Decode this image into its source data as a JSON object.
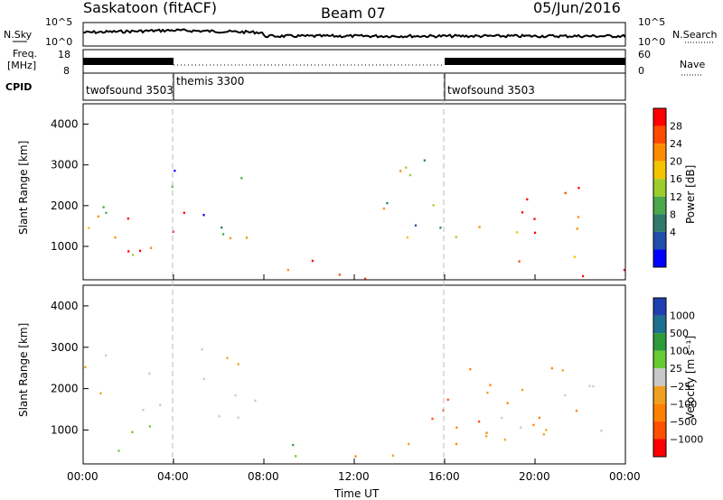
{
  "header": {
    "station": "Saskatoon (fitACF)",
    "beam": "Beam 07",
    "date": "05/Jun/2016"
  },
  "status_panel": {
    "nsky_label": "N.Sky",
    "nsearch_label": "N.Search",
    "freq_label_line1": "Freq.",
    "freq_label_line2": "[MHz]",
    "nave_label": "Nave",
    "cpid_label": "CPID",
    "left_ticks_noise": [
      "10^5",
      "10^0"
    ],
    "right_ticks_noise": [
      "10^5",
      "10^0"
    ],
    "left_ticks_freq": [
      "18",
      "8"
    ],
    "right_ticks_nave": [
      "60",
      "0"
    ],
    "cpid_segments": [
      {
        "start_hour": 0,
        "end_hour": 4,
        "label": "twofsound 3503"
      },
      {
        "start_hour": 4,
        "end_hour": 16,
        "label": "themis 3300"
      },
      {
        "start_hour": 16,
        "end_hour": 24,
        "label": "twofsound 3503"
      }
    ]
  },
  "x_axis": {
    "title": "Time UT",
    "ticks": [
      "00:00",
      "04:00",
      "08:00",
      "12:00",
      "16:00",
      "20:00",
      "00:00"
    ]
  },
  "power_colorbar": {
    "title": "Power [dB]",
    "labels": [
      "28",
      "24",
      "20",
      "16",
      "12",
      "8",
      "4"
    ],
    "colors": [
      "#ff0000",
      "#ff4a00",
      "#ff8c00",
      "#f5c400",
      "#9ccd2c",
      "#4aa84a",
      "#2f7a6a",
      "#1f4fa8",
      "#0000ff"
    ]
  },
  "velocity_colorbar": {
    "title": "Velocity [m s⁻¹]",
    "labels": [
      "1000",
      "500",
      "100",
      "25",
      "−25",
      "−100",
      "−500",
      "−1000"
    ],
    "colors": [
      "#1f3fb0",
      "#1e7090",
      "#2d9a3c",
      "#66cc33",
      "#c8c8c8",
      "#f0a020",
      "#ff8000",
      "#ff5000",
      "#ff0000"
    ]
  },
  "chart_data": [
    {
      "type": "heatmap",
      "title": "Power",
      "ylabel": "Slant Range [km]",
      "xlabel": "Time UT",
      "x_range_hours": [
        0,
        24
      ],
      "ylim": [
        180,
        4500
      ],
      "y_ticks": [
        "1000",
        "2000",
        "3000",
        "4000"
      ],
      "features": [
        {
          "t0": 0.0,
          "t1": 4.0,
          "r0": 700,
          "r1": 2900,
          "level": "mixed",
          "peak_db": 28
        },
        {
          "t0": 2.5,
          "t1": 4.0,
          "r0": 600,
          "r1": 1500,
          "level": "high",
          "peak_db": 28
        },
        {
          "t0": 4.0,
          "t1": 7.5,
          "r0": 1200,
          "r1": 3200,
          "level": "mixed",
          "peak_db": 20
        },
        {
          "t0": 8.0,
          "t1": 12.0,
          "r0": 200,
          "r1": 700,
          "level": "high",
          "peak_db": 28
        },
        {
          "t0": 10.5,
          "t1": 16.0,
          "r0": 200,
          "r1": 600,
          "level": "mixed",
          "peak_db": 24
        },
        {
          "t0": 13.0,
          "t1": 17.0,
          "r0": 1000,
          "r1": 3400,
          "level": "mixed",
          "peak_db": 24
        },
        {
          "t0": 17.5,
          "t1": 23.0,
          "r0": 600,
          "r1": 2600,
          "level": "high",
          "peak_db": 28
        },
        {
          "t0": 20.0,
          "t1": 24.0,
          "r0": 200,
          "r1": 600,
          "level": "high",
          "peak_db": 28
        }
      ]
    },
    {
      "type": "heatmap",
      "title": "Velocity",
      "ylabel": "Slant Range [km]",
      "xlabel": "Time UT",
      "x_range_hours": [
        0,
        24
      ],
      "ylim": [
        180,
        4500
      ],
      "y_ticks": [
        "1000",
        "2000",
        "3000",
        "4000"
      ],
      "features": [
        {
          "t0": 0.0,
          "t1": 4.0,
          "r0": 1500,
          "r1": 2900,
          "velocity": -25
        },
        {
          "t0": 1.5,
          "t1": 4.0,
          "r0": 500,
          "r1": 1500,
          "velocity": 100
        },
        {
          "t0": 4.0,
          "t1": 8.0,
          "r0": 1300,
          "r1": 3200,
          "velocity": 0
        },
        {
          "t0": 8.0,
          "t1": 12.0,
          "r0": 200,
          "r1": 700,
          "velocity": 100
        },
        {
          "t0": 12.0,
          "t1": 20.0,
          "r0": 200,
          "r1": 800,
          "velocity": -100
        },
        {
          "t0": 15.0,
          "t1": 17.5,
          "r0": 1000,
          "r1": 3000,
          "velocity": -500
        },
        {
          "t0": 17.5,
          "t1": 22.0,
          "r0": 600,
          "r1": 2800,
          "velocity": -100
        },
        {
          "t0": 18.0,
          "t1": 23.0,
          "r0": 1000,
          "r1": 2500,
          "velocity": 0
        }
      ]
    }
  ]
}
